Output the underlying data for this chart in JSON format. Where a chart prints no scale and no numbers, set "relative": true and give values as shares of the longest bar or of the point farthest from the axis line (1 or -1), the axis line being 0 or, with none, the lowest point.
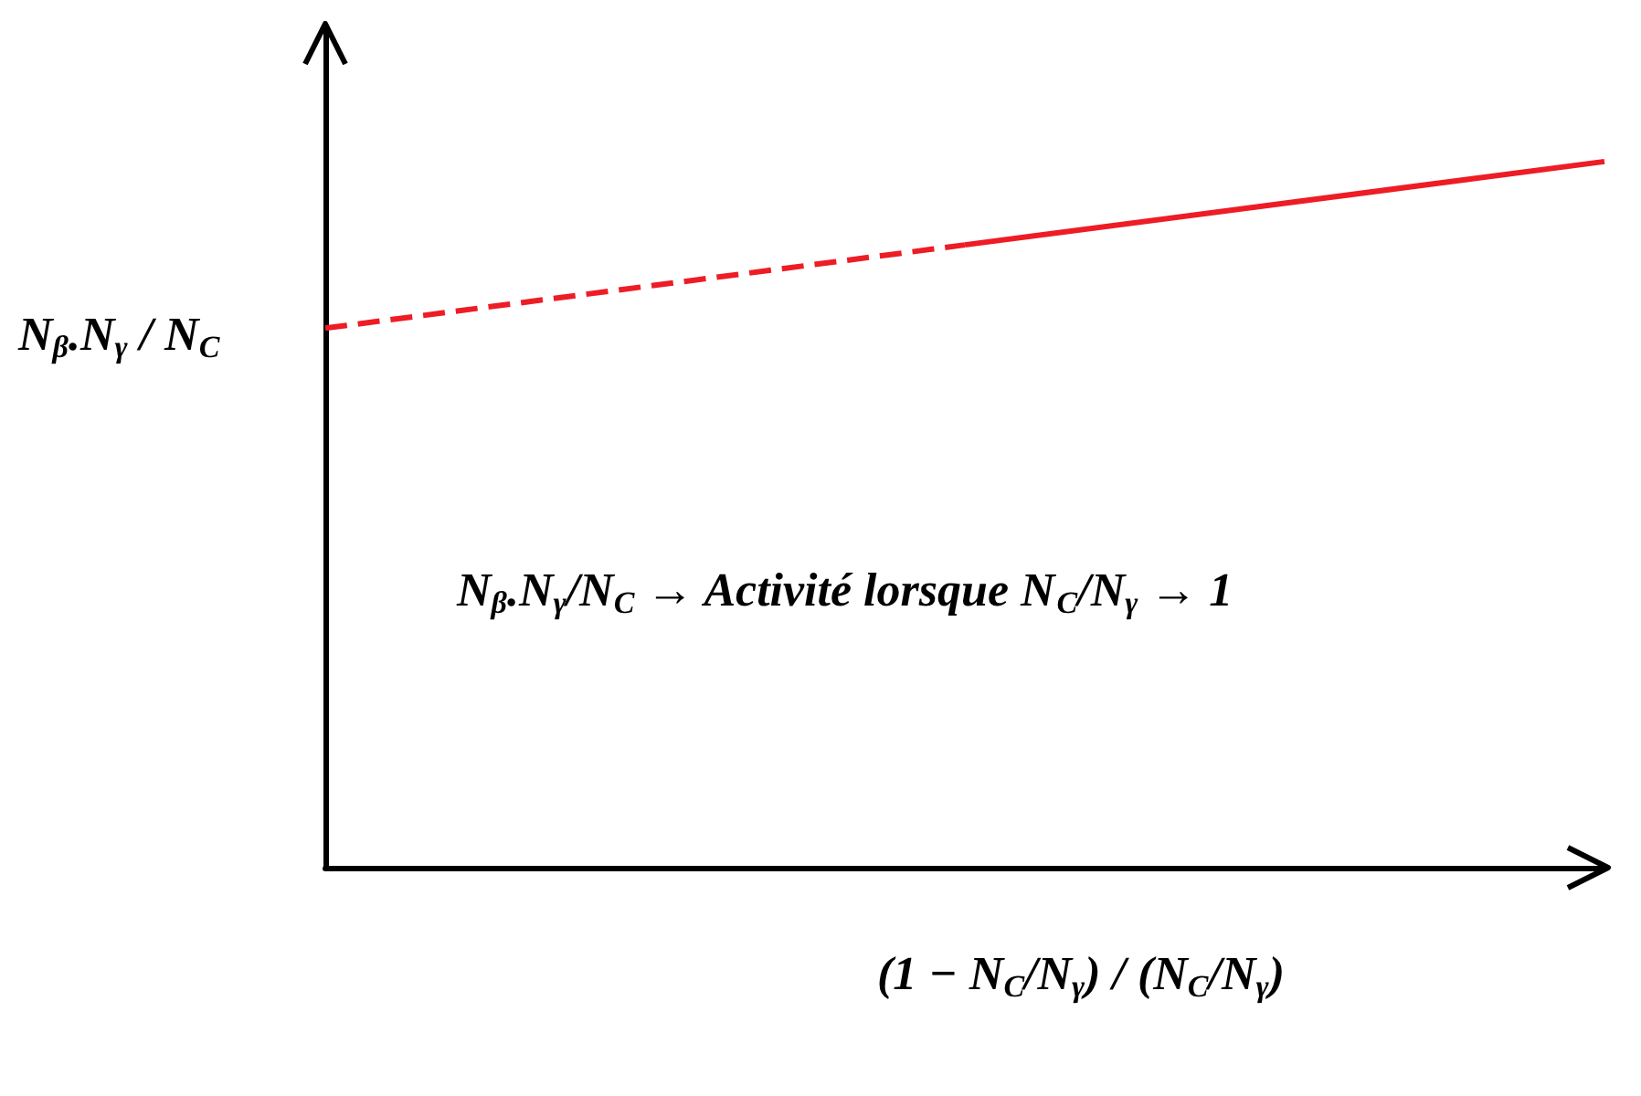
{
  "chart_data": {
    "type": "line",
    "relative": true,
    "categories": [
      null,
      null,
      null
    ],
    "xlabel": "(1 − N$_{C}$/N$_{γ}$) / (N$_{C}$/N$_{γ}$)",
    "ylabel": "N$_{β}$.N$_{γ}$ / N$_{C}$",
    "series": [
      {
        "color": "#ee1c25",
        "values": [
          0.764,
          0.882,
          null
        ],
        "line_style": "dashed"
      },
      {
        "color": "#ee1c25",
        "values": [
          null,
          0.882,
          1
        ],
        "line_style": "solid"
      }
    ],
    "annotations": [
      "N$_{β}$.N$_{γ}$/N$_{C}$ → Activité lorsque N$_{C}$/N$_{γ}$ → 1"
    ],
    "grid": false,
    "marker": "none"
  }
}
